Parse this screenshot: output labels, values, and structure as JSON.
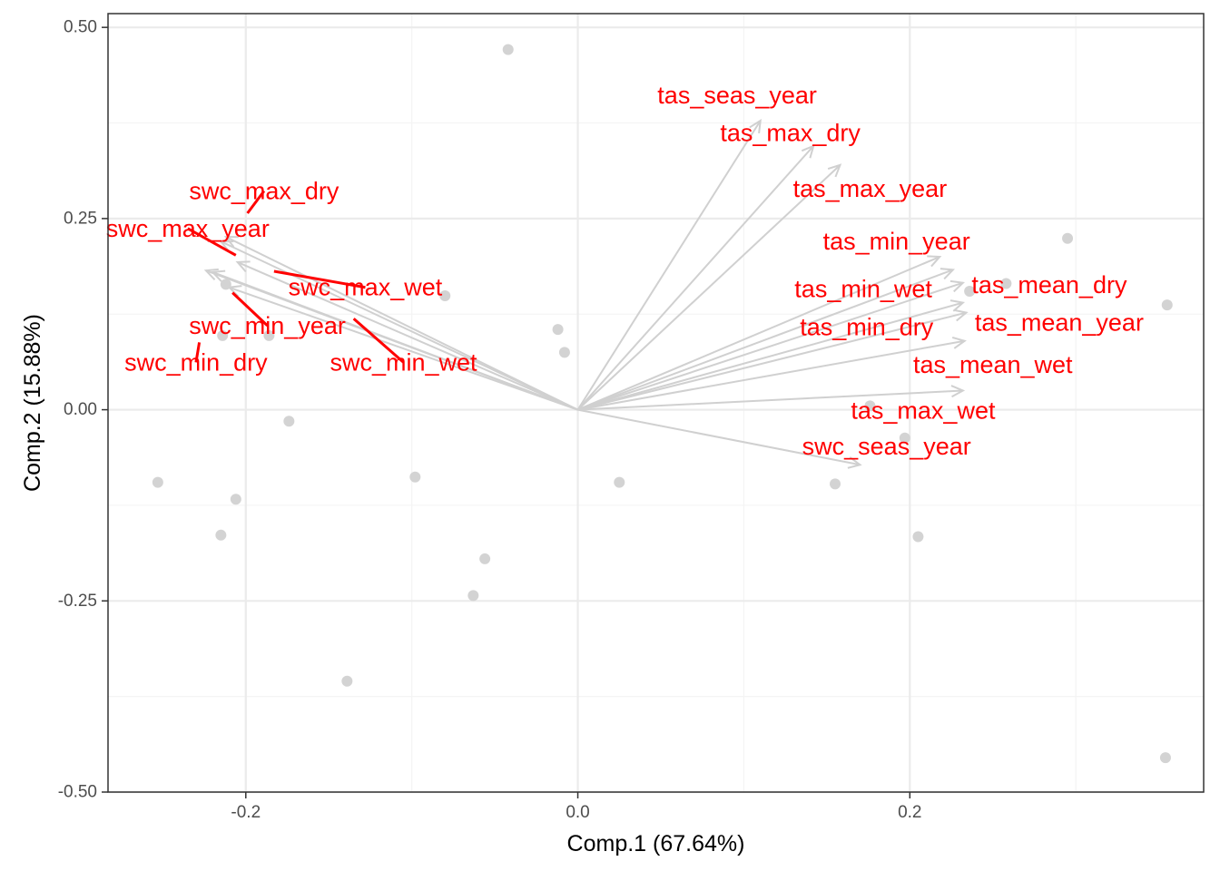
{
  "chart_data": {
    "type": "scatter",
    "subtype": "pca-biplot",
    "title": "",
    "xlabel": "Comp.1 (67.64%)",
    "ylabel": "Comp.2 (15.88%)",
    "xlim": [
      -0.283,
      0.377
    ],
    "ylim": [
      -0.5,
      0.518
    ],
    "xticks": [
      -0.2,
      0.0,
      0.2
    ],
    "xtick_labels": [
      "-0.2",
      "0.0",
      "0.2"
    ],
    "yticks": [
      -0.5,
      -0.25,
      0.0,
      0.25,
      0.5
    ],
    "ytick_labels": [
      "-0.50",
      "-0.25",
      "0.00",
      "0.25",
      "0.50"
    ],
    "grid": true,
    "legend": "none",
    "colors": {
      "points": "#d3d3d3",
      "arrows": "#d0d0d0",
      "labels": "#ff0000",
      "panel_border": "#333333",
      "grid_major": "#ebebeb",
      "grid_minor": "#f4f4f4"
    },
    "points": [
      {
        "x": -0.042,
        "y": 0.471
      },
      {
        "x": -0.08,
        "y": 0.149
      },
      {
        "x": -0.212,
        "y": 0.164
      },
      {
        "x": -0.214,
        "y": 0.097
      },
      {
        "x": -0.186,
        "y": 0.097
      },
      {
        "x": -0.174,
        "y": -0.015
      },
      {
        "x": -0.253,
        "y": -0.095
      },
      {
        "x": -0.206,
        "y": -0.117
      },
      {
        "x": -0.215,
        "y": -0.164
      },
      {
        "x": -0.098,
        "y": -0.088
      },
      {
        "x": -0.056,
        "y": -0.195
      },
      {
        "x": -0.063,
        "y": -0.243
      },
      {
        "x": -0.139,
        "y": -0.355
      },
      {
        "x": -0.012,
        "y": 0.105
      },
      {
        "x": -0.008,
        "y": 0.075
      },
      {
        "x": 0.025,
        "y": -0.095
      },
      {
        "x": 0.155,
        "y": -0.097
      },
      {
        "x": 0.176,
        "y": 0.005
      },
      {
        "x": 0.197,
        "y": -0.037
      },
      {
        "x": 0.205,
        "y": -0.166
      },
      {
        "x": 0.236,
        "y": 0.155
      },
      {
        "x": 0.258,
        "y": 0.165
      },
      {
        "x": 0.295,
        "y": 0.224
      },
      {
        "x": 0.355,
        "y": 0.137
      },
      {
        "x": 0.354,
        "y": -0.455
      }
    ],
    "loadings": [
      {
        "name": "tas_seas_year",
        "x": 0.11,
        "y": 0.378
      },
      {
        "name": "tas_max_dry",
        "x": 0.142,
        "y": 0.345
      },
      {
        "name": "tas_max_year",
        "x": 0.158,
        "y": 0.32
      },
      {
        "name": "tas_min_year",
        "x": 0.218,
        "y": 0.2
      },
      {
        "name": "tas_min_wet",
        "x": 0.226,
        "y": 0.183
      },
      {
        "name": "tas_min_dry",
        "x": 0.232,
        "y": 0.14
      },
      {
        "name": "tas_mean_dry",
        "x": 0.232,
        "y": 0.166
      },
      {
        "name": "tas_mean_year",
        "x": 0.234,
        "y": 0.127
      },
      {
        "name": "tas_mean_wet",
        "x": 0.233,
        "y": 0.09
      },
      {
        "name": "tas_max_wet",
        "x": 0.232,
        "y": 0.025
      },
      {
        "name": "swc_seas_year",
        "x": 0.17,
        "y": -0.072
      },
      {
        "name": "swc_max_dry",
        "x": -0.212,
        "y": 0.226
      },
      {
        "name": "swc_max_year",
        "x": -0.215,
        "y": 0.22
      },
      {
        "name": "swc_max_wet",
        "x": -0.205,
        "y": 0.193
      },
      {
        "name": "swc_min_year",
        "x": -0.22,
        "y": 0.18
      },
      {
        "name": "swc_min_dry",
        "x": -0.224,
        "y": 0.182
      },
      {
        "name": "swc_min_wet",
        "x": -0.21,
        "y": 0.16
      }
    ],
    "labels": [
      {
        "text": "tas_seas_year",
        "x": 0.096,
        "y": 0.411,
        "anchor": {
          "x": 0.096,
          "y": 0.411
        }
      },
      {
        "text": "tas_max_dry",
        "x": 0.128,
        "y": 0.362,
        "anchor": {
          "x": 0.128,
          "y": 0.362
        }
      },
      {
        "text": "tas_max_year",
        "x": 0.176,
        "y": 0.289,
        "anchor": {
          "x": 0.176,
          "y": 0.289
        }
      },
      {
        "text": "tas_min_year",
        "x": 0.192,
        "y": 0.22,
        "anchor": {
          "x": 0.192,
          "y": 0.22
        }
      },
      {
        "text": "tas_min_wet",
        "x": 0.172,
        "y": 0.158,
        "anchor": {
          "x": 0.172,
          "y": 0.158
        }
      },
      {
        "text": "tas_min_dry",
        "x": 0.174,
        "y": 0.108,
        "anchor": {
          "x": 0.174,
          "y": 0.108
        }
      },
      {
        "text": "tas_mean_dry",
        "x": 0.284,
        "y": 0.163,
        "anchor": {
          "x": 0.284,
          "y": 0.163
        }
      },
      {
        "text": "tas_mean_year",
        "x": 0.29,
        "y": 0.114,
        "anchor": {
          "x": 0.29,
          "y": 0.114
        }
      },
      {
        "text": "tas_mean_wet",
        "x": 0.25,
        "y": 0.059,
        "anchor": {
          "x": 0.25,
          "y": 0.059
        }
      },
      {
        "text": "tas_max_wet",
        "x": 0.208,
        "y": -0.001,
        "anchor": {
          "x": 0.208,
          "y": -0.001
        }
      },
      {
        "text": "swc_seas_year",
        "x": 0.186,
        "y": -0.048,
        "anchor": {
          "x": 0.186,
          "y": -0.048
        }
      },
      {
        "text": "swc_max_dry",
        "x": -0.189,
        "y": 0.286,
        "anchor": {
          "x": -0.199,
          "y": 0.257
        }
      },
      {
        "text": "swc_max_year",
        "x": -0.235,
        "y": 0.237,
        "anchor": {
          "x": -0.206,
          "y": 0.202
        }
      },
      {
        "text": "swc_max_wet",
        "x": -0.128,
        "y": 0.16,
        "anchor": {
          "x": -0.183,
          "y": 0.181
        }
      },
      {
        "text": "swc_min_year",
        "x": -0.187,
        "y": 0.11,
        "anchor": {
          "x": -0.208,
          "y": 0.153
        }
      },
      {
        "text": "swc_min_dry",
        "x": -0.23,
        "y": 0.062,
        "anchor": {
          "x": -0.228,
          "y": 0.088
        }
      },
      {
        "text": "swc_min_wet",
        "x": -0.105,
        "y": 0.062,
        "anchor": {
          "x": -0.135,
          "y": 0.119
        }
      }
    ]
  }
}
